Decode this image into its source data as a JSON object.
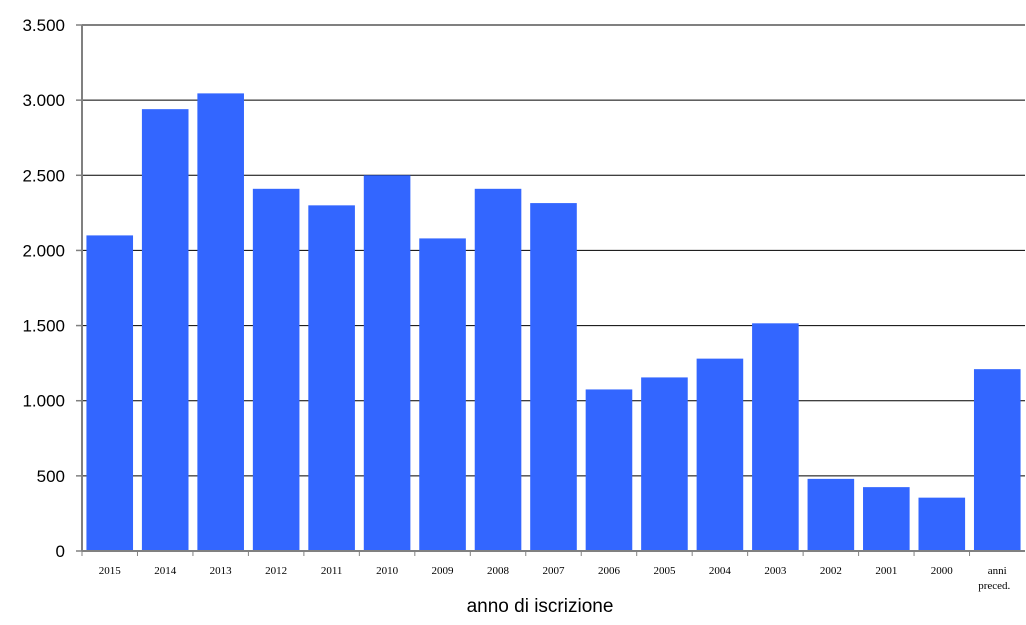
{
  "chart_data": {
    "type": "bar",
    "categories": [
      "2015",
      "2014",
      "2013",
      "2012",
      "2011",
      "2010",
      "2009",
      "2008",
      "2007",
      "2006",
      "2005",
      "2004",
      "2003",
      "2002",
      "2001",
      "2000",
      "anni preced."
    ],
    "values": [
      2100,
      2940,
      3045,
      2410,
      2300,
      2500,
      2080,
      2410,
      2315,
      1075,
      1155,
      1280,
      1515,
      480,
      425,
      355,
      1210
    ],
    "title": "",
    "xlabel": "anno di iscrizione",
    "ylabel": "",
    "ylim": [
      0,
      3500
    ],
    "yticks": [
      0,
      500,
      1000,
      1500,
      2000,
      2500,
      3000,
      3500
    ],
    "ytick_labels": [
      "0",
      "500",
      "1.000",
      "1.500",
      "2.000",
      "2.500",
      "3.000",
      "3.500"
    ],
    "grid": true,
    "legend": "none",
    "colors": {
      "bar": "#3366ff",
      "grid": "#000000",
      "axis": "#808080"
    }
  }
}
